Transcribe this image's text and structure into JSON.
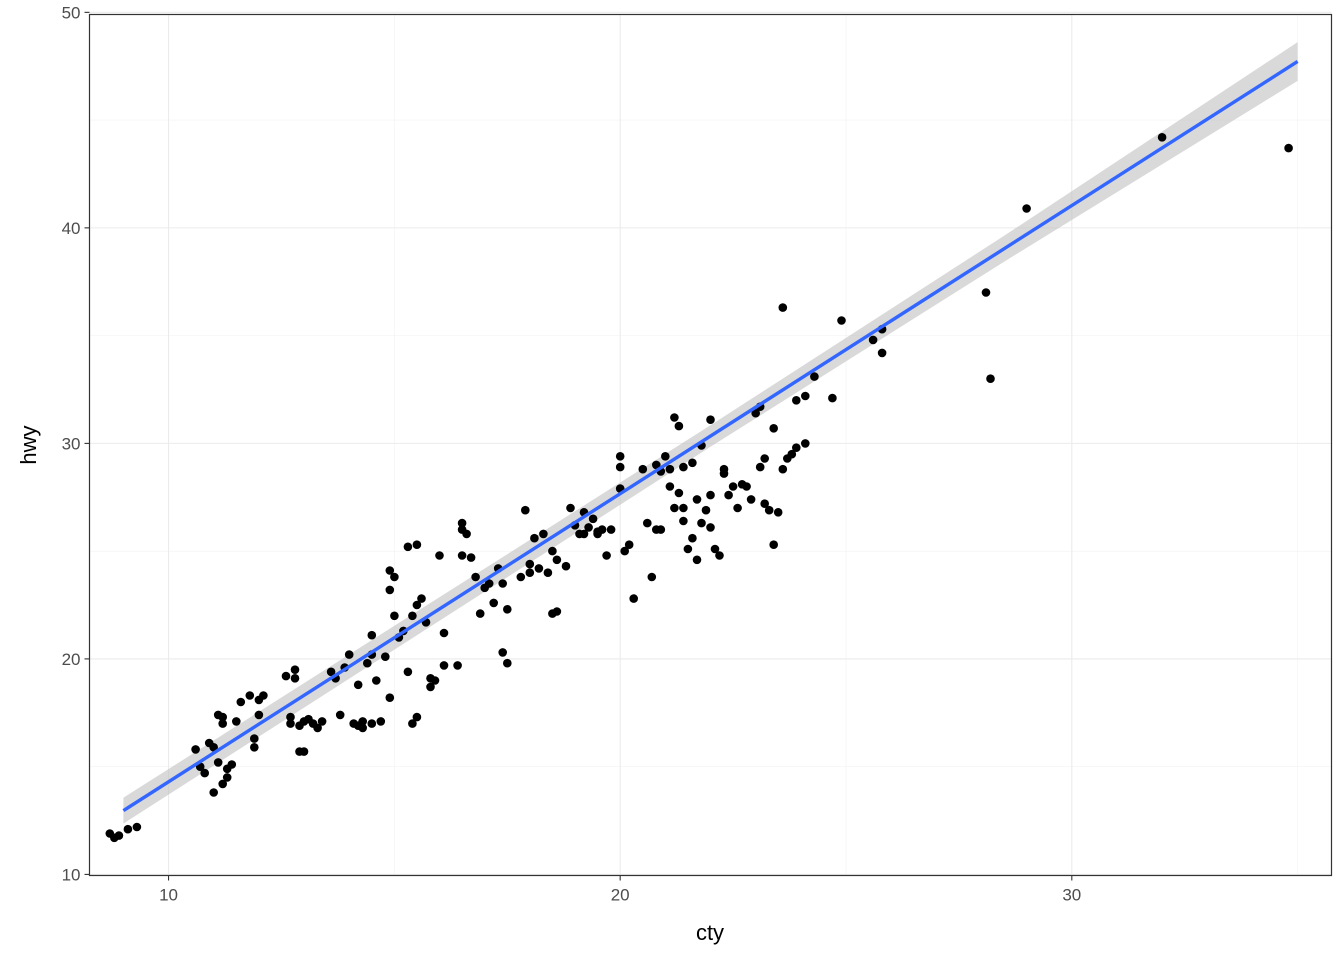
{
  "chart_data": {
    "type": "scatter",
    "title": "",
    "xlabel": "cty",
    "ylabel": "hwy",
    "xlim": [
      8.25,
      35.75
    ],
    "ylim": [
      9.95,
      49.9
    ],
    "x_ticks": [
      10,
      20,
      30
    ],
    "y_ticks": [
      10,
      20,
      30,
      40,
      50
    ],
    "x_tick_labels": [
      "10",
      "20",
      "30"
    ],
    "y_tick_labels": [
      "10",
      "20",
      "30",
      "40",
      "50"
    ],
    "grid": true,
    "legend": "none",
    "colors": {
      "points": "#000000",
      "trend_line": "#3366FF",
      "confidence_band": "#bfbfbf",
      "panel_border": "#333333"
    },
    "points": [
      [
        9.1,
        12.1
      ],
      [
        8.9,
        11.8
      ],
      [
        8.8,
        11.7
      ],
      [
        9.3,
        12.2
      ],
      [
        8.7,
        11.9
      ],
      [
        10.6,
        15.8
      ],
      [
        10.7,
        15.0
      ],
      [
        10.8,
        14.7
      ],
      [
        10.9,
        16.1
      ],
      [
        11.0,
        15.9
      ],
      [
        11.1,
        17.4
      ],
      [
        11.2,
        17.0
      ],
      [
        11.1,
        15.2
      ],
      [
        11.3,
        14.9
      ],
      [
        11.3,
        14.5
      ],
      [
        11.0,
        13.8
      ],
      [
        11.2,
        14.2
      ],
      [
        11.4,
        15.1
      ],
      [
        11.5,
        17.1
      ],
      [
        11.2,
        17.3
      ],
      [
        11.6,
        18.0
      ],
      [
        11.8,
        18.3
      ],
      [
        11.9,
        16.3
      ],
      [
        11.9,
        15.9
      ],
      [
        12.0,
        17.4
      ],
      [
        12.0,
        18.1
      ],
      [
        12.1,
        18.3
      ],
      [
        12.6,
        19.2
      ],
      [
        12.7,
        17.0
      ],
      [
        12.7,
        17.3
      ],
      [
        12.8,
        19.1
      ],
      [
        12.8,
        19.5
      ],
      [
        12.9,
        16.9
      ],
      [
        13.0,
        17.1
      ],
      [
        12.9,
        15.7
      ],
      [
        13.0,
        15.7
      ],
      [
        13.1,
        17.2
      ],
      [
        13.2,
        17.0
      ],
      [
        13.3,
        16.8
      ],
      [
        13.4,
        17.1
      ],
      [
        13.6,
        19.4
      ],
      [
        13.7,
        19.1
      ],
      [
        13.8,
        17.4
      ],
      [
        13.9,
        19.6
      ],
      [
        14.0,
        20.2
      ],
      [
        14.1,
        17.0
      ],
      [
        14.2,
        16.9
      ],
      [
        14.2,
        18.8
      ],
      [
        14.3,
        17.1
      ],
      [
        14.3,
        16.8
      ],
      [
        14.5,
        17.0
      ],
      [
        14.4,
        19.8
      ],
      [
        14.5,
        20.2
      ],
      [
        14.6,
        19.0
      ],
      [
        14.7,
        17.1
      ],
      [
        14.8,
        20.1
      ],
      [
        14.9,
        18.2
      ],
      [
        14.5,
        21.1
      ],
      [
        14.9,
        24.1
      ],
      [
        14.9,
        23.2
      ],
      [
        15.0,
        22.0
      ],
      [
        15.0,
        23.8
      ],
      [
        15.1,
        21.0
      ],
      [
        15.2,
        21.3
      ],
      [
        15.3,
        19.4
      ],
      [
        15.3,
        25.2
      ],
      [
        15.4,
        22.0
      ],
      [
        15.5,
        22.5
      ],
      [
        15.5,
        25.3
      ],
      [
        15.6,
        22.8
      ],
      [
        15.7,
        21.7
      ],
      [
        15.4,
        17.0
      ],
      [
        15.5,
        17.3
      ],
      [
        15.8,
        19.1
      ],
      [
        15.8,
        18.7
      ],
      [
        15.9,
        19.0
      ],
      [
        16.0,
        24.8
      ],
      [
        16.1,
        21.2
      ],
      [
        16.1,
        19.7
      ],
      [
        16.4,
        19.7
      ],
      [
        16.5,
        26.3
      ],
      [
        16.5,
        26.0
      ],
      [
        16.6,
        25.8
      ],
      [
        16.5,
        24.8
      ],
      [
        16.7,
        24.7
      ],
      [
        16.8,
        23.8
      ],
      [
        16.9,
        22.1
      ],
      [
        17.0,
        23.3
      ],
      [
        17.1,
        23.5
      ],
      [
        17.2,
        22.6
      ],
      [
        17.3,
        24.2
      ],
      [
        17.4,
        23.5
      ],
      [
        17.5,
        22.3
      ],
      [
        17.4,
        20.3
      ],
      [
        17.5,
        19.8
      ],
      [
        17.8,
        23.8
      ],
      [
        17.9,
        26.9
      ],
      [
        18.0,
        24.0
      ],
      [
        18.0,
        24.4
      ],
      [
        18.1,
        25.6
      ],
      [
        18.2,
        24.2
      ],
      [
        18.3,
        25.8
      ],
      [
        18.4,
        24.0
      ],
      [
        18.5,
        25.0
      ],
      [
        18.5,
        22.1
      ],
      [
        18.6,
        22.2
      ],
      [
        18.6,
        24.6
      ],
      [
        18.8,
        24.3
      ],
      [
        18.9,
        27.0
      ],
      [
        19.0,
        26.2
      ],
      [
        19.1,
        25.8
      ],
      [
        19.2,
        26.8
      ],
      [
        19.2,
        25.8
      ],
      [
        19.3,
        26.1
      ],
      [
        19.4,
        26.5
      ],
      [
        19.5,
        25.8
      ],
      [
        19.6,
        26.0
      ],
      [
        19.5,
        25.9
      ],
      [
        19.7,
        24.8
      ],
      [
        19.8,
        26.0
      ],
      [
        20.0,
        28.9
      ],
      [
        20.0,
        29.4
      ],
      [
        20.0,
        27.9
      ],
      [
        20.1,
        25.0
      ],
      [
        20.2,
        25.3
      ],
      [
        20.3,
        22.8
      ],
      [
        20.5,
        28.8
      ],
      [
        20.6,
        26.3
      ],
      [
        20.7,
        23.8
      ],
      [
        20.8,
        26.0
      ],
      [
        20.9,
        26.0
      ],
      [
        21.1,
        28.0
      ],
      [
        21.3,
        27.7
      ],
      [
        21.4,
        26.4
      ],
      [
        21.5,
        25.1
      ],
      [
        21.6,
        25.6
      ],
      [
        21.7,
        27.4
      ],
      [
        21.8,
        26.3
      ],
      [
        21.9,
        26.9
      ],
      [
        22.0,
        26.1
      ],
      [
        22.1,
        25.1
      ],
      [
        22.2,
        24.8
      ],
      [
        21.7,
        24.6
      ],
      [
        22.0,
        27.6
      ],
      [
        22.3,
        28.6
      ],
      [
        22.4,
        27.6
      ],
      [
        22.5,
        28.0
      ],
      [
        22.6,
        27.0
      ],
      [
        22.7,
        28.1
      ],
      [
        22.8,
        28.0
      ],
      [
        22.9,
        27.4
      ],
      [
        23.0,
        31.4
      ],
      [
        23.1,
        28.9
      ],
      [
        23.2,
        27.2
      ],
      [
        23.3,
        26.9
      ],
      [
        23.4,
        25.3
      ],
      [
        23.5,
        26.8
      ],
      [
        23.6,
        28.8
      ],
      [
        23.7,
        29.3
      ],
      [
        23.8,
        29.5
      ],
      [
        23.9,
        29.8
      ],
      [
        20.8,
        29.0
      ],
      [
        20.9,
        28.7
      ],
      [
        21.0,
        29.4
      ],
      [
        21.1,
        28.8
      ],
      [
        21.2,
        31.2
      ],
      [
        21.3,
        30.8
      ],
      [
        21.4,
        28.9
      ],
      [
        21.2,
        27.0
      ],
      [
        21.4,
        27.0
      ],
      [
        21.6,
        29.1
      ],
      [
        21.8,
        29.9
      ],
      [
        22.0,
        31.1
      ],
      [
        22.3,
        28.8
      ],
      [
        23.1,
        31.7
      ],
      [
        23.2,
        29.3
      ],
      [
        23.4,
        30.7
      ],
      [
        23.9,
        32.0
      ],
      [
        24.1,
        30.0
      ],
      [
        24.1,
        32.2
      ],
      [
        24.3,
        33.1
      ],
      [
        24.7,
        32.1
      ],
      [
        24.9,
        35.7
      ],
      [
        25.6,
        34.8
      ],
      [
        25.8,
        35.3
      ],
      [
        25.8,
        34.2
      ],
      [
        23.6,
        36.3
      ],
      [
        28.1,
        37.0
      ],
      [
        28.2,
        33.0
      ],
      [
        29.0,
        40.9
      ],
      [
        32.0,
        44.2
      ],
      [
        34.8,
        43.7
      ]
    ],
    "trend_line": {
      "method": "linear",
      "x": [
        9.0,
        35.0
      ],
      "y": [
        12.96,
        47.72
      ],
      "band_halfwidth": [
        0.6,
        0.55,
        0.5,
        0.6,
        0.9
      ]
    }
  }
}
